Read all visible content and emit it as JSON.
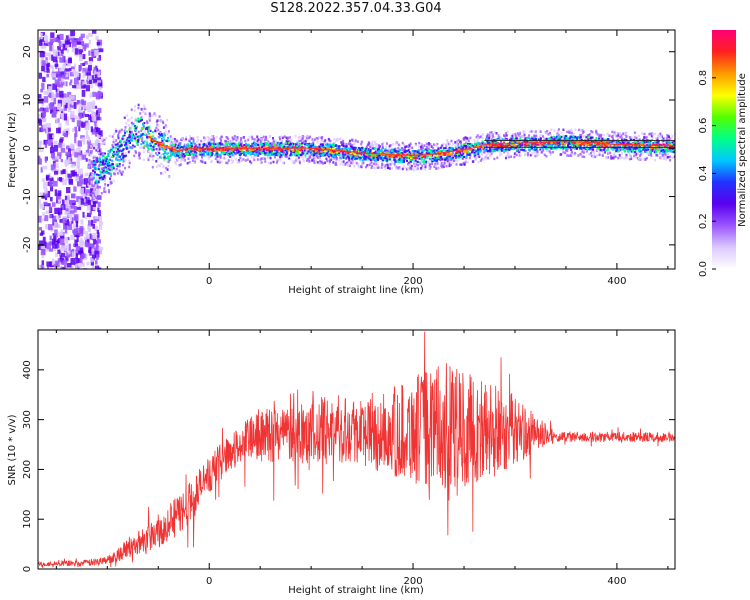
{
  "title": "S128.2022.357.04.33.G04",
  "colors": {
    "snr_line": "#f03434",
    "frame": "#000000",
    "ridge": "#ff2a2a"
  },
  "chart_data": [
    {
      "type": "heatmap",
      "xlabel": "Height of straight line (km)",
      "ylabel": "Frequency (Hz)",
      "xlim": [
        -168,
        457
      ],
      "ylim": [
        -25,
        24.5
      ],
      "xticks": [
        0,
        200,
        400
      ],
      "yticks": [
        -20,
        -10,
        0,
        10,
        20
      ],
      "colorbar": {
        "label": "Normalized spectral amplitude",
        "range": [
          0,
          1
        ],
        "ticks": [
          "0.0",
          "0.2",
          "0.4",
          "0.6",
          "0.8"
        ],
        "colormap": [
          "#ffffff",
          "#dcc8ff",
          "#9a55ff",
          "#5a00ee",
          "#2233ff",
          "#00c8ff",
          "#00ff88",
          "#55ff00",
          "#ffff00",
          "#ff9900",
          "#ff2020",
          "#ff0077"
        ]
      },
      "ridge_frequency": {
        "x": [
          -115,
          -100,
          -90,
          -80,
          -70,
          -60,
          -50,
          -40,
          -30,
          -20,
          0,
          50,
          100,
          130,
          150,
          170,
          200,
          220,
          250,
          265,
          270,
          300,
          350,
          400,
          457
        ],
        "y": [
          -5,
          -3,
          -1,
          2,
          4,
          2.5,
          1,
          0,
          -0.5,
          0,
          0,
          0,
          0,
          -0.5,
          -1,
          -1.2,
          -1.5,
          -1.2,
          -0.3,
          0.3,
          0.8,
          1,
          1.5,
          0.8,
          0.5
        ]
      }
    },
    {
      "type": "line",
      "xlabel": "Height of straight line (km)",
      "ylabel": "SNR (10 * v/v)",
      "xlim": [
        -168,
        457
      ],
      "ylim": [
        0,
        480
      ],
      "xticks": [
        0,
        200,
        400
      ],
      "yticks": [
        0,
        100,
        200,
        300,
        400
      ],
      "series": [
        {
          "envelope_x": [
            -168,
            -120,
            -100,
            -80,
            -60,
            -40,
            -20,
            0,
            20,
            40,
            60,
            80,
            100,
            120,
            140,
            160,
            180,
            200,
            220,
            240,
            260,
            280,
            300,
            320,
            340,
            360,
            380,
            400,
            420,
            457
          ],
          "envelope_y": [
            10,
            12,
            18,
            40,
            65,
            90,
            130,
            190,
            235,
            260,
            270,
            275,
            275,
            280,
            285,
            270,
            275,
            280,
            285,
            285,
            280,
            275,
            280,
            270,
            265,
            265,
            265,
            265,
            265,
            265
          ],
          "noise_x": [
            -168,
            -100,
            -60,
            -20,
            20,
            60,
            120,
            160,
            190,
            230,
            280,
            320,
            340,
            457
          ],
          "noise_amp": [
            4,
            8,
            30,
            45,
            35,
            55,
            70,
            70,
            100,
            130,
            100,
            40,
            10,
            10
          ]
        }
      ]
    }
  ]
}
